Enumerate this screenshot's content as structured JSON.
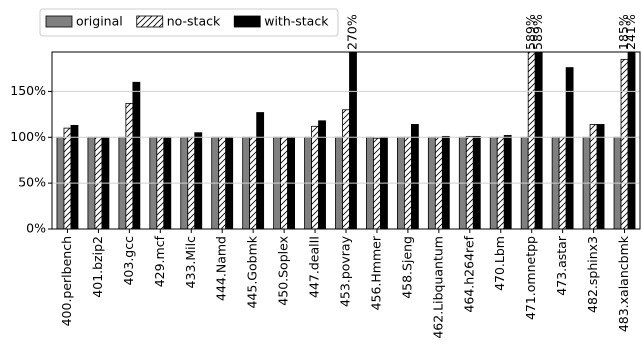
{
  "chart_data": {
    "type": "bar",
    "categories": [
      "400.perlbench",
      "401.bzip2",
      "403.gcc",
      "429.mcf",
      "433.Milc",
      "444.Namd",
      "445.Gobmk",
      "450.Soplex",
      "447.dealII",
      "453.povray",
      "456.Hmmer",
      "458.Sjeng",
      "462.Libquantum",
      "464.h264ref",
      "470.Lbm",
      "471.omnetpp",
      "473.astar",
      "482.sphinx3",
      "483.xalancbmk"
    ],
    "series": [
      {
        "name": "original",
        "color": "#808080",
        "values": [
          100,
          100,
          100,
          100,
          100,
          100,
          100,
          100,
          100,
          100,
          100,
          100,
          100,
          100,
          100,
          100,
          100,
          100,
          100
        ]
      },
      {
        "name": "no-stack",
        "color": "#ffffff",
        "hatch": "/",
        "values": [
          110,
          100,
          137,
          100,
          100,
          100,
          100,
          100,
          112,
          130,
          99,
          100,
          100,
          101,
          100,
          589,
          100,
          114,
          185
        ],
        "value_labels": [
          null,
          null,
          null,
          null,
          null,
          null,
          null,
          null,
          null,
          null,
          null,
          null,
          null,
          null,
          null,
          "589%",
          null,
          null,
          "185%"
        ]
      },
      {
        "name": "with-stack",
        "color": "#000000",
        "values": [
          113,
          100,
          160,
          100,
          105,
          100,
          127,
          100,
          118,
          270,
          100,
          114,
          101,
          101,
          102,
          589,
          176,
          114,
          241
        ],
        "value_labels": [
          null,
          null,
          null,
          null,
          null,
          null,
          null,
          null,
          null,
          "270%",
          null,
          null,
          null,
          null,
          null,
          "589%",
          null,
          null,
          "241%"
        ]
      }
    ],
    "ylim": [
      0,
      193
    ],
    "yticks": [
      {
        "value": 0,
        "label": "0%"
      },
      {
        "value": 50,
        "label": "50%"
      },
      {
        "value": 100,
        "label": "100%"
      },
      {
        "value": 150,
        "label": "150%"
      }
    ],
    "grid": true
  }
}
